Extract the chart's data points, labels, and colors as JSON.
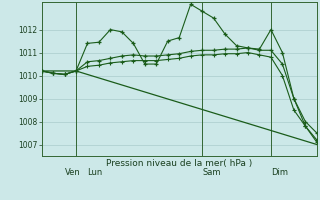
{
  "background_color": "#cce8e8",
  "grid_color": "#aacccc",
  "line_color": "#1a5c1a",
  "title": "Pression niveau de la mer( hPa )",
  "ylim": [
    1006.5,
    1013.2
  ],
  "yticks": [
    1007,
    1008,
    1009,
    1010,
    1011,
    1012
  ],
  "day_labels": [
    "Ven",
    "Lun",
    "Sam",
    "Dim"
  ],
  "figsize": [
    3.2,
    2.0
  ],
  "dpi": 100,
  "series1_x": [
    0,
    1,
    2,
    3,
    4,
    5,
    6,
    7,
    8,
    9,
    10,
    11,
    12,
    13,
    14,
    15,
    16,
    17,
    18,
    19,
    20,
    21,
    22,
    23,
    24
  ],
  "series1_y": [
    1010.2,
    1010.1,
    1010.05,
    1010.2,
    1011.4,
    1011.45,
    1012.0,
    1011.9,
    1011.4,
    1010.5,
    1010.5,
    1011.5,
    1011.65,
    1013.1,
    1012.8,
    1012.5,
    1011.8,
    1011.3,
    1011.2,
    1011.15,
    1012.0,
    1011.0,
    1009.0,
    1007.8,
    1007.1
  ],
  "series2_x": [
    0,
    1,
    2,
    3,
    4,
    5,
    6,
    7,
    8,
    9,
    10,
    11,
    12,
    13,
    14,
    15,
    16,
    17,
    18,
    19,
    20,
    21,
    22,
    23,
    24
  ],
  "series2_y": [
    1010.2,
    1010.1,
    1010.05,
    1010.2,
    1010.6,
    1010.65,
    1010.75,
    1010.85,
    1010.9,
    1010.85,
    1010.85,
    1010.9,
    1010.95,
    1011.05,
    1011.1,
    1011.1,
    1011.15,
    1011.15,
    1011.2,
    1011.1,
    1011.1,
    1010.5,
    1009.0,
    1008.0,
    1007.5
  ],
  "series3_x": [
    0,
    1,
    2,
    3,
    4,
    5,
    6,
    7,
    8,
    9,
    10,
    11,
    12,
    13,
    14,
    15,
    16,
    17,
    18,
    19,
    20,
    21,
    22,
    23,
    24
  ],
  "series3_y": [
    1010.2,
    1010.1,
    1010.05,
    1010.2,
    1010.4,
    1010.45,
    1010.55,
    1010.6,
    1010.65,
    1010.65,
    1010.65,
    1010.7,
    1010.75,
    1010.85,
    1010.9,
    1010.9,
    1010.95,
    1010.95,
    1011.0,
    1010.9,
    1010.8,
    1010.0,
    1008.5,
    1007.8,
    1007.2
  ],
  "series4_x": [
    0,
    3,
    24
  ],
  "series4_y": [
    1010.2,
    1010.2,
    1007.0
  ],
  "ven_x": 2,
  "lun_x": 4,
  "sam_x": 14,
  "dim_x": 20,
  "vline_x": [
    3,
    14,
    20
  ],
  "xlim": [
    0,
    24
  ]
}
